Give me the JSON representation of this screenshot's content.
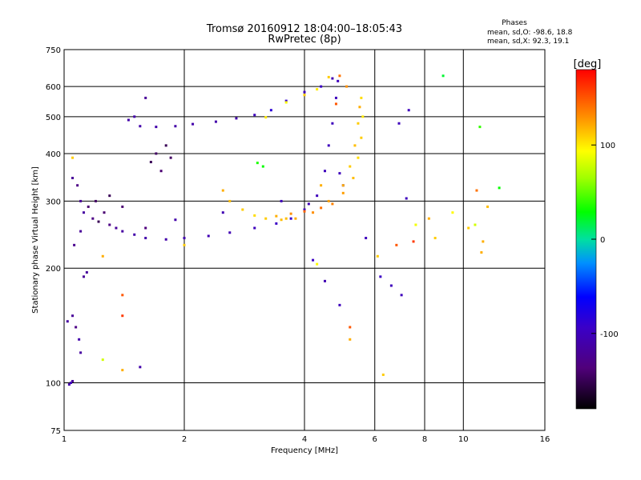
{
  "header": {
    "title": "Tromsø 20160912 18:04:00–18:05:43",
    "subtitle": "RwPretec (8p)"
  },
  "phase_box": {
    "title": "Phases",
    "line_o": "mean, sd,O: -98.6, 18.8",
    "line_x": "mean, sd,X:  92.3, 19.1"
  },
  "chart_data": {
    "type": "scatter",
    "xlabel": "Frequency [MHz]",
    "ylabel": "Stationary phase Virtual Height [km]",
    "xscale": "log",
    "yscale": "log",
    "xlim": [
      1,
      16
    ],
    "ylim": [
      75,
      750
    ],
    "x_ticks": [
      1,
      2,
      4,
      6,
      8,
      10,
      16
    ],
    "x_tick_labels": [
      "1",
      "2",
      "4",
      "6",
      "8",
      "10",
      "16"
    ],
    "y_ticks": [
      75,
      100,
      200,
      300,
      400,
      500,
      600,
      750
    ],
    "y_tick_labels": [
      "75",
      "100",
      "200",
      "300",
      "400",
      "500",
      "600",
      "750"
    ],
    "grid": true,
    "colorbar": {
      "label": "[deg]",
      "range": [
        -180,
        180
      ],
      "ticks": [
        -100,
        0,
        100
      ],
      "tick_labels": [
        "-100",
        "0",
        "100"
      ]
    },
    "series": [
      {
        "points": [
          [
            1.1,
            300,
            -120
          ],
          [
            1.12,
            280,
            -115
          ],
          [
            1.15,
            290,
            -140
          ],
          [
            1.18,
            270,
            -130
          ],
          [
            1.22,
            265,
            -150
          ],
          [
            1.26,
            280,
            -140
          ],
          [
            1.3,
            260,
            -130
          ],
          [
            1.35,
            255,
            -120
          ],
          [
            1.4,
            250,
            -115
          ],
          [
            1.5,
            245,
            -110
          ],
          [
            1.6,
            240,
            -110
          ],
          [
            1.8,
            238,
            -110
          ],
          [
            2.0,
            240,
            -108
          ],
          [
            2.3,
            243,
            -105
          ],
          [
            2.6,
            248,
            -105
          ],
          [
            3.0,
            255,
            -100
          ],
          [
            3.4,
            262,
            -95
          ],
          [
            3.7,
            270,
            -90
          ],
          [
            4.0,
            285,
            -100
          ],
          [
            4.3,
            310,
            -100
          ],
          [
            4.5,
            360,
            -100
          ],
          [
            4.6,
            420,
            -100
          ],
          [
            4.7,
            480,
            -100
          ],
          [
            4.8,
            560,
            -100
          ],
          [
            4.85,
            620,
            -100
          ],
          [
            4.7,
            630,
            -105
          ],
          [
            4.4,
            600,
            -95
          ],
          [
            4.0,
            580,
            -100
          ],
          [
            3.6,
            550,
            -90
          ],
          [
            3.3,
            520,
            -85
          ],
          [
            3.0,
            505,
            -100
          ],
          [
            2.7,
            495,
            -110
          ],
          [
            2.4,
            485,
            -110
          ],
          [
            2.1,
            478,
            -110
          ],
          [
            1.9,
            472,
            -112
          ],
          [
            1.7,
            470,
            -110
          ],
          [
            1.55,
            472,
            -110
          ],
          [
            1.45,
            490,
            -110
          ],
          [
            1.5,
            500,
            -110
          ],
          [
            1.6,
            560,
            -120
          ],
          [
            1.65,
            380,
            -150
          ],
          [
            1.7,
            400,
            -145
          ],
          [
            1.75,
            360,
            -140
          ],
          [
            1.8,
            420,
            -150
          ],
          [
            1.85,
            390,
            -145
          ],
          [
            1.05,
            150,
            -120
          ],
          [
            1.07,
            140,
            -130
          ],
          [
            1.09,
            130,
            -110
          ],
          [
            1.1,
            120,
            -115
          ],
          [
            1.12,
            190,
            -120
          ],
          [
            1.14,
            195,
            -118
          ],
          [
            1.06,
            230,
            -125
          ],
          [
            1.08,
            330,
            -130
          ],
          [
            1.04,
            100,
            -100
          ],
          [
            1.05,
            101,
            -120
          ],
          [
            1.03,
            99,
            -110
          ],
          [
            1.02,
            145,
            -115
          ],
          [
            1.05,
            345,
            -120
          ],
          [
            1.1,
            250,
            -120
          ],
          [
            1.2,
            300,
            -145
          ],
          [
            1.3,
            310,
            -150
          ],
          [
            1.4,
            290,
            -140
          ],
          [
            1.6,
            255,
            -135
          ],
          [
            1.55,
            110,
            -110
          ],
          [
            1.9,
            268,
            -110
          ],
          [
            2.5,
            280,
            -105
          ],
          [
            3.5,
            300,
            -100
          ],
          [
            4.1,
            295,
            -105
          ],
          [
            4.9,
            355,
            -100
          ],
          [
            5.0,
            330,
            -100
          ],
          [
            4.5,
            185,
            -105
          ],
          [
            4.2,
            210,
            -95
          ],
          [
            4.9,
            160,
            -100
          ],
          [
            5.7,
            240,
            -100
          ],
          [
            6.2,
            190,
            -95
          ],
          [
            6.6,
            180,
            -100
          ],
          [
            7.0,
            170,
            -100
          ],
          [
            7.2,
            305,
            -100
          ],
          [
            6.9,
            480,
            -100
          ],
          [
            7.3,
            520,
            -100
          ]
        ]
      },
      {
        "points": [
          [
            2.5,
            320,
            120
          ],
          [
            2.6,
            300,
            115
          ],
          [
            2.8,
            285,
            110
          ],
          [
            3.0,
            275,
            105
          ],
          [
            3.2,
            270,
            110
          ],
          [
            3.5,
            268,
            115
          ],
          [
            3.8,
            270,
            120
          ],
          [
            4.2,
            280,
            130
          ],
          [
            4.6,
            300,
            125
          ],
          [
            5.0,
            330,
            120
          ],
          [
            5.2,
            370,
            110
          ],
          [
            5.35,
            420,
            115
          ],
          [
            5.45,
            480,
            110
          ],
          [
            5.5,
            530,
            120
          ],
          [
            5.55,
            560,
            105
          ],
          [
            5.6,
            500,
            100
          ],
          [
            5.55,
            440,
            110
          ],
          [
            5.45,
            390,
            105
          ],
          [
            5.3,
            345,
            115
          ],
          [
            5.0,
            315,
            125
          ],
          [
            4.7,
            295,
            135
          ],
          [
            4.4,
            288,
            140
          ],
          [
            4.0,
            282,
            145
          ],
          [
            3.7,
            278,
            130
          ],
          [
            3.4,
            274,
            120
          ],
          [
            3.2,
            498,
            100
          ],
          [
            3.6,
            545,
            95
          ],
          [
            4.0,
            570,
            110
          ],
          [
            4.3,
            590,
            100
          ],
          [
            4.6,
            635,
            110
          ],
          [
            4.9,
            640,
            140
          ],
          [
            5.1,
            600,
            130
          ],
          [
            4.8,
            540,
            150
          ],
          [
            3.15,
            370,
            30
          ],
          [
            3.05,
            378,
            35
          ],
          [
            1.05,
            390,
            110
          ],
          [
            1.25,
            215,
            120
          ],
          [
            1.4,
            170,
            150
          ],
          [
            1.4,
            150,
            160
          ],
          [
            1.4,
            108,
            120
          ],
          [
            1.25,
            115,
            80
          ],
          [
            2.0,
            230,
            110
          ],
          [
            3.6,
            270,
            115
          ],
          [
            4.4,
            330,
            120
          ],
          [
            5.2,
            140,
            150
          ],
          [
            5.2,
            130,
            120
          ],
          [
            6.3,
            105,
            110
          ],
          [
            6.8,
            230,
            150
          ],
          [
            7.5,
            235,
            160
          ],
          [
            8.2,
            270,
            120
          ],
          [
            8.5,
            240,
            110
          ],
          [
            9.4,
            280,
            95
          ],
          [
            10.3,
            255,
            110
          ],
          [
            10.8,
            320,
            140
          ],
          [
            11.2,
            235,
            120
          ],
          [
            11.5,
            290,
            115
          ],
          [
            10.7,
            260,
            80
          ],
          [
            11.1,
            220,
            120
          ],
          [
            12.3,
            325,
            30
          ],
          [
            8.9,
            640,
            20
          ],
          [
            11.0,
            470,
            40
          ],
          [
            7.6,
            260,
            90
          ],
          [
            4.3,
            205,
            95
          ],
          [
            6.1,
            215,
            110
          ]
        ]
      }
    ]
  }
}
